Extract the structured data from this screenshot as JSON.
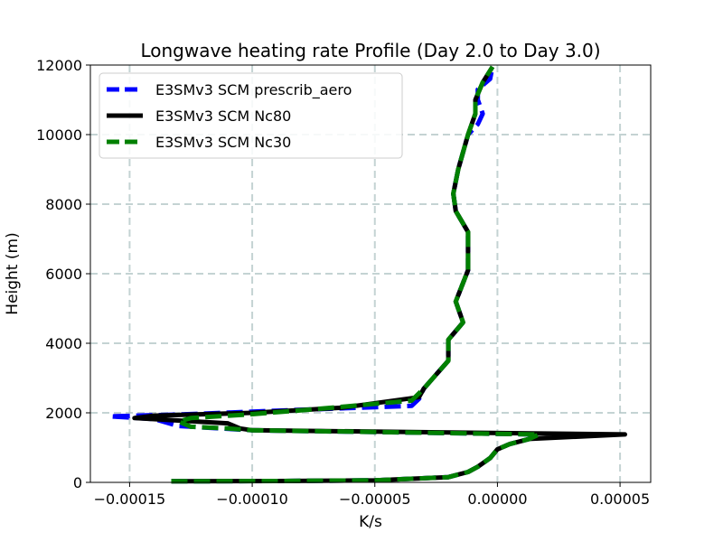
{
  "chart_data": {
    "type": "line",
    "title": "Longwave heating rate Profile (Day 2.0 to Day 3.0)",
    "xlabel": "K/s",
    "ylabel": "Height (m)",
    "xlim": [
      -0.000166,
      6.25e-05
    ],
    "ylim": [
      0,
      12000
    ],
    "xticks": [
      -0.00015,
      -0.0001,
      -5e-05,
      0.0,
      5e-05
    ],
    "xtick_labels": [
      "−0.00015",
      "−0.00010",
      "−0.00005",
      "0.00000",
      "0.00005"
    ],
    "yticks": [
      0,
      2000,
      4000,
      6000,
      8000,
      10000,
      12000
    ],
    "ytick_labels": [
      "0",
      "2000",
      "4000",
      "6000",
      "8000",
      "10000",
      "12000"
    ],
    "grid": true,
    "legend_position": "top-left",
    "series": [
      {
        "name": "E3SMv3 SCM prescrib_aero",
        "color": "#0000ff",
        "style": "dashed",
        "points": [
          [
            -0.000133,
            30
          ],
          [
            -9e-05,
            40
          ],
          [
            -5e-05,
            60
          ],
          [
            -2e-05,
            150
          ],
          [
            -1.2e-05,
            300
          ],
          [
            -8e-06,
            450
          ],
          [
            -3e-06,
            700
          ],
          [
            0.0,
            950
          ],
          [
            5e-06,
            1100
          ],
          [
            1.3e-05,
            1250
          ],
          [
            1.7e-05,
            1380
          ],
          [
            -0.0001,
            1500
          ],
          [
            -0.00013,
            1620
          ],
          [
            -0.00014,
            1820
          ],
          [
            -0.000158,
            1900
          ],
          [
            -0.00013,
            1950
          ],
          [
            -7.5e-05,
            2100
          ],
          [
            -3.5e-05,
            2200
          ],
          [
            -3.2e-05,
            2400
          ],
          [
            -3e-05,
            2700
          ],
          [
            -2.5e-05,
            3100
          ],
          [
            -2e-05,
            3500
          ],
          [
            -2e-05,
            4100
          ],
          [
            -1.4e-05,
            4600
          ],
          [
            -1.7e-05,
            5200
          ],
          [
            -1.2e-05,
            6100
          ],
          [
            -1.2e-05,
            7200
          ],
          [
            -1.7e-05,
            7800
          ],
          [
            -1.8e-05,
            8300
          ],
          [
            -1.6e-05,
            9000
          ],
          [
            -1.2e-05,
            10000
          ],
          [
            -8e-06,
            10300
          ],
          [
            -6e-06,
            10600
          ],
          [
            -8e-06,
            11000
          ],
          [
            -8e-06,
            11300
          ],
          [
            -3e-06,
            11600
          ],
          [
            -2e-06,
            11950
          ]
        ]
      },
      {
        "name": "E3SMv3 SCM Nc80",
        "color": "#000000",
        "style": "solid",
        "points": [
          [
            -0.000133,
            30
          ],
          [
            -9e-05,
            40
          ],
          [
            -5e-05,
            60
          ],
          [
            -2e-05,
            150
          ],
          [
            -1.2e-05,
            300
          ],
          [
            -8e-06,
            450
          ],
          [
            -3e-06,
            700
          ],
          [
            0.0,
            950
          ],
          [
            5e-06,
            1100
          ],
          [
            1.3e-05,
            1250
          ],
          [
            5.2e-05,
            1380
          ],
          [
            -0.0001,
            1500
          ],
          [
            -0.000105,
            1550
          ],
          [
            -0.00011,
            1700
          ],
          [
            -0.000148,
            1850
          ],
          [
            -0.00014,
            1920
          ],
          [
            -0.0001,
            2000
          ],
          [
            -6.3e-05,
            2150
          ],
          [
            -3.2e-05,
            2450
          ],
          [
            -3e-05,
            2700
          ],
          [
            -2.5e-05,
            3100
          ],
          [
            -2e-05,
            3500
          ],
          [
            -2e-05,
            4100
          ],
          [
            -1.4e-05,
            4600
          ],
          [
            -1.7e-05,
            5200
          ],
          [
            -1.2e-05,
            6100
          ],
          [
            -1.2e-05,
            7200
          ],
          [
            -1.7e-05,
            7800
          ],
          [
            -1.8e-05,
            8300
          ],
          [
            -1.6e-05,
            9000
          ],
          [
            -1.2e-05,
            10000
          ],
          [
            -9e-06,
            10600
          ],
          [
            -9e-06,
            11000
          ],
          [
            -6e-06,
            11500
          ],
          [
            -2e-06,
            11950
          ]
        ]
      },
      {
        "name": "E3SMv3 SCM Nc30",
        "color": "#008000",
        "style": "dashed",
        "points": [
          [
            -0.000133,
            30
          ],
          [
            -9e-05,
            40
          ],
          [
            -5e-05,
            60
          ],
          [
            -2e-05,
            150
          ],
          [
            -1.2e-05,
            300
          ],
          [
            -8e-06,
            450
          ],
          [
            -3e-06,
            700
          ],
          [
            0.0,
            950
          ],
          [
            5e-06,
            1100
          ],
          [
            1.3e-05,
            1250
          ],
          [
            1.7e-05,
            1380
          ],
          [
            -0.0001,
            1500
          ],
          [
            -0.00011,
            1550
          ],
          [
            -0.000125,
            1600
          ],
          [
            -0.00013,
            1750
          ],
          [
            -0.000125,
            1850
          ],
          [
            -0.0001,
            1960
          ],
          [
            -7.5e-05,
            2100
          ],
          [
            -3.5e-05,
            2350
          ],
          [
            -3e-05,
            2700
          ],
          [
            -2.5e-05,
            3100
          ],
          [
            -2e-05,
            3500
          ],
          [
            -2e-05,
            4100
          ],
          [
            -1.4e-05,
            4600
          ],
          [
            -1.7e-05,
            5200
          ],
          [
            -1.2e-05,
            6100
          ],
          [
            -1.2e-05,
            7200
          ],
          [
            -1.7e-05,
            7800
          ],
          [
            -1.8e-05,
            8300
          ],
          [
            -1.6e-05,
            9000
          ],
          [
            -1.2e-05,
            10000
          ],
          [
            -9e-06,
            10600
          ],
          [
            -9e-06,
            11000
          ],
          [
            -6e-06,
            11500
          ],
          [
            -2e-06,
            11950
          ]
        ]
      }
    ]
  }
}
